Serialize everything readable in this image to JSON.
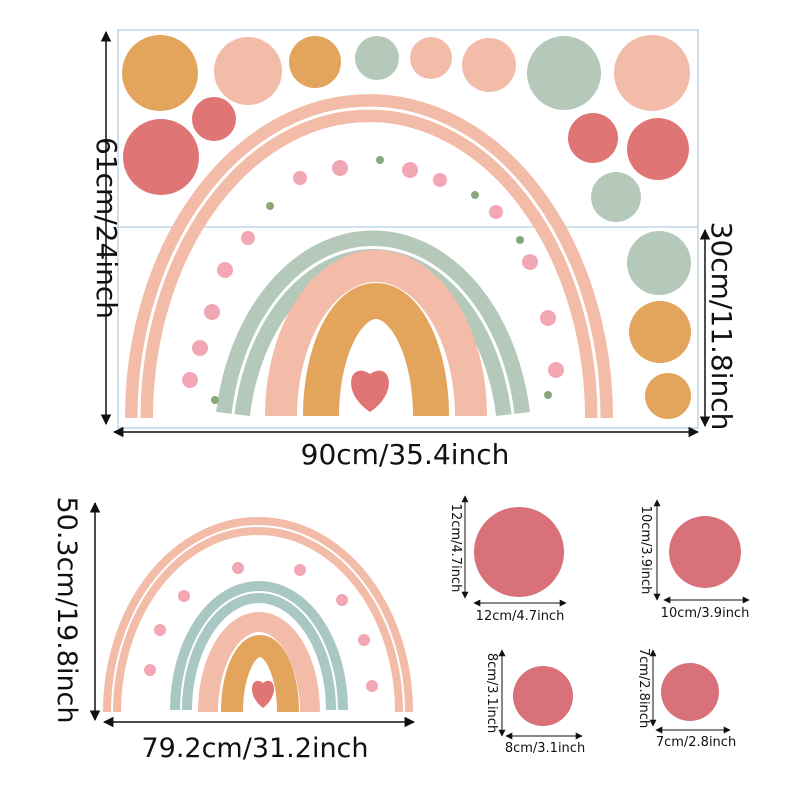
{
  "dimensions": {
    "sheet_height": "61cm/24inch",
    "sheet_width": "90cm/35.4inch",
    "bottom_sheet_height": "30cm/11.8inch",
    "rainbow_height": "50.3cm/19.8inch",
    "rainbow_width": "79.2cm/31.2inch"
  },
  "circles": [
    {
      "name": "circle-12cm",
      "height_label": "12cm/4.7inch",
      "width_label": "12cm/4.7inch"
    },
    {
      "name": "circle-10cm",
      "height_label": "10cm/3.9inch",
      "width_label": "10cm/3.9inch"
    },
    {
      "name": "circle-8cm",
      "height_label": "8cm/3.1inch",
      "width_label": "8cm/3.1inch"
    },
    {
      "name": "circle-7cm",
      "height_label": "7cm/2.8inch",
      "width_label": "7cm/2.8inch"
    }
  ],
  "colors": {
    "peach": "#f2bca9",
    "mustard": "#e3a45c",
    "sage": "#b5c9bb",
    "coral": "#e07575",
    "rose": "#d8717a",
    "flower": "#f3a7b4",
    "leaf": "#8aa77a"
  }
}
